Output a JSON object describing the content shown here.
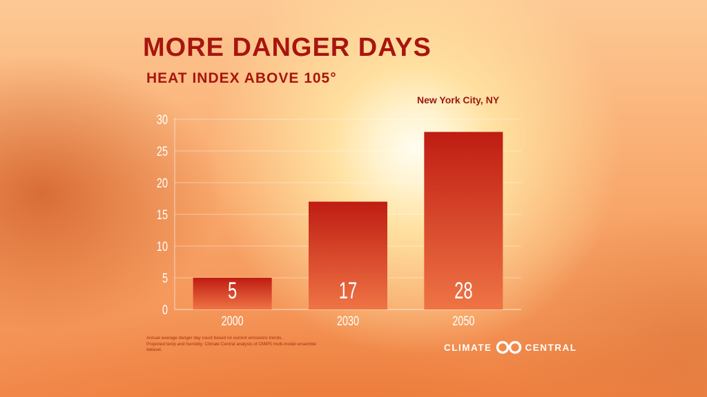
{
  "chart_data": {
    "type": "bar",
    "title": "MORE DANGER DAYS",
    "subtitle": "HEAT INDEX ABOVE 105°",
    "location": "New York City, NY",
    "categories": [
      "2000",
      "2030",
      "2050"
    ],
    "values": [
      5,
      17,
      28
    ],
    "data_labels": [
      "5",
      "17",
      "28"
    ],
    "yticks": [
      "0",
      "5",
      "10",
      "15",
      "20",
      "25",
      "30"
    ],
    "ylim": [
      0,
      30
    ],
    "grid": true,
    "bar_color_top": "#bf1c12",
    "bar_color_bottom": "#ef7445"
  },
  "footnote": {
    "lines": [
      "Annual average danger day count based on current emissions trends.",
      "Projected temp and humidity: Climate Central analysis of CMIP5 multi-model ensemble",
      "dataset."
    ]
  },
  "brand": {
    "left": "CLIMATE",
    "right": "CENTRAL",
    "logo_icon": "climate-central-logo-icon"
  }
}
